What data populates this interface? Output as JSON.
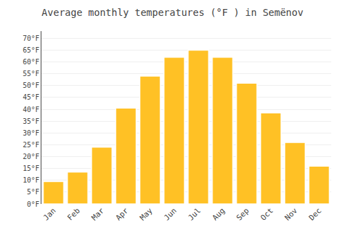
{
  "chart_data": {
    "type": "bar",
    "title": "Average monthly temperatures (°F ) in Semënov",
    "categories": [
      "Jan",
      "Feb",
      "Mar",
      "Apr",
      "May",
      "Jun",
      "Jul",
      "Aug",
      "Sep",
      "Oct",
      "Nov",
      "Dec"
    ],
    "values": [
      9.5,
      13.5,
      24,
      40.5,
      54,
      62,
      65,
      62,
      51,
      38.5,
      26,
      16
    ],
    "color": "#FFC125",
    "ylim": [
      0,
      73
    ],
    "yticks": [
      {
        "value": 0,
        "label": "0°F"
      },
      {
        "value": 5,
        "label": "5°F"
      },
      {
        "value": 10,
        "label": "10°F"
      },
      {
        "value": 15,
        "label": "15°F"
      },
      {
        "value": 20,
        "label": "20°F"
      },
      {
        "value": 25,
        "label": "25°F"
      },
      {
        "value": 30,
        "label": "30°F"
      },
      {
        "value": 35,
        "label": "35°F"
      },
      {
        "value": 40,
        "label": "40°F"
      },
      {
        "value": 45,
        "label": "45°F"
      },
      {
        "value": 50,
        "label": "50°F"
      },
      {
        "value": 55,
        "label": "55°F"
      },
      {
        "value": 60,
        "label": "60°F"
      },
      {
        "value": 65,
        "label": "65°F"
      },
      {
        "value": 70,
        "label": "70°F"
      }
    ],
    "grid": true
  }
}
